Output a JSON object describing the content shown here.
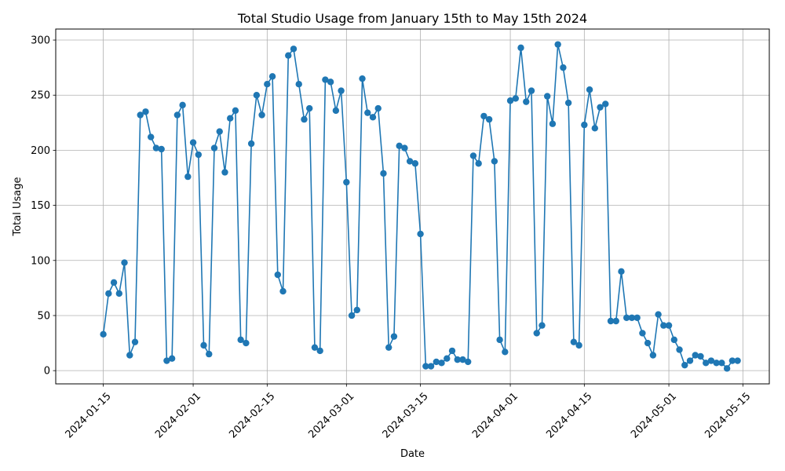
{
  "chart_data": {
    "type": "line",
    "title": "Total Studio Usage from January 15th to May 15th 2024",
    "xlabel": "Date",
    "ylabel": "Total Usage",
    "grid": true,
    "marker": "circle",
    "color": "#1f77b4",
    "x_start": "2024-01-15",
    "x_end": "2024-05-14",
    "xlim": [
      "2024-01-06",
      "2024-05-20"
    ],
    "ylim": [
      -12,
      310
    ],
    "x_ticks": [
      "2024-01-15",
      "2024-02-01",
      "2024-02-15",
      "2024-03-01",
      "2024-03-15",
      "2024-04-01",
      "2024-04-15",
      "2024-05-01",
      "2024-05-15"
    ],
    "y_ticks": [
      0,
      50,
      100,
      150,
      200,
      250,
      300
    ],
    "values": [
      33,
      70,
      80,
      70,
      98,
      14,
      26,
      232,
      235,
      212,
      202,
      201,
      9,
      11,
      232,
      241,
      176,
      207,
      196,
      23,
      15,
      202,
      217,
      180,
      229,
      236,
      28,
      25,
      206,
      250,
      232,
      260,
      267,
      87,
      72,
      286,
      292,
      260,
      228,
      238,
      21,
      18,
      264,
      262,
      236,
      254,
      171,
      50,
      55,
      265,
      234,
      230,
      238,
      179,
      21,
      31,
      204,
      202,
      190,
      188,
      124,
      4,
      4,
      8,
      7,
      11,
      18,
      10,
      10,
      8,
      195,
      188,
      231,
      228,
      190,
      28,
      17,
      245,
      247,
      293,
      244,
      254,
      34,
      41,
      249,
      224,
      296,
      275,
      243,
      26,
      23,
      223,
      255,
      220,
      239,
      242,
      45,
      45,
      90,
      48,
      48,
      48,
      34,
      25,
      14,
      51,
      41,
      41,
      28,
      19,
      5,
      9,
      14,
      13,
      7,
      9,
      7,
      7,
      2,
      9,
      9
    ]
  }
}
